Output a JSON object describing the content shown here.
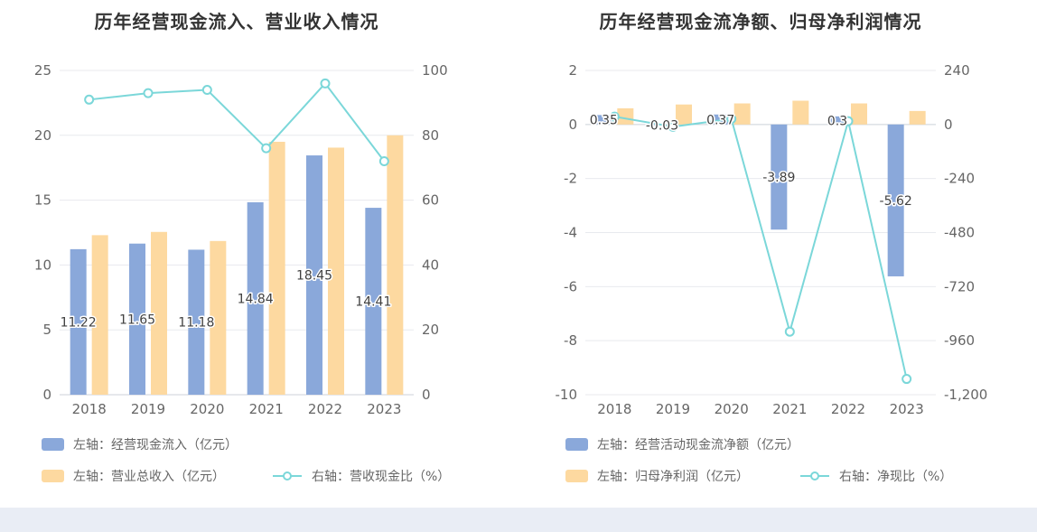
{
  "colors": {
    "bar_blue": "#8aa8da",
    "bar_yellow": "#fdd9a0",
    "line_teal": "#7bd7d9",
    "grid_line": "#e8eaee",
    "axis_line": "#ccd2d9",
    "axis_text": "#666666",
    "title_text": "#333333",
    "bar_label_text": "#404040",
    "legend_text": "#666666",
    "footer_strip": "#e9edf5",
    "panel_background": "#ffffff"
  },
  "chart_data": [
    {
      "type": "bar",
      "subtype": "grouped-bars-with-line-overlay",
      "title": "历年经营现金流入、营业收入情况",
      "categories": [
        "2018",
        "2019",
        "2020",
        "2021",
        "2022",
        "2023"
      ],
      "left_axis": {
        "min": 0,
        "max": 25,
        "ticks": [
          "25",
          "20",
          "15",
          "10",
          "5",
          "0"
        ],
        "axis_line_value": 0
      },
      "right_axis": {
        "min": 0,
        "max": 100,
        "ticks": [
          "100",
          "80",
          "60",
          "40",
          "20",
          "0"
        ]
      },
      "grid": true,
      "legend_position": "bottom-left",
      "series": [
        {
          "name": "左轴：经营现金流入（亿元）",
          "kind": "bar",
          "axis": "left",
          "color_key": "bar_blue",
          "values": [
            11.22,
            11.65,
            11.18,
            14.84,
            18.45,
            14.41
          ],
          "labels": [
            "11.22",
            "11.65",
            "11.18",
            "14.84",
            "18.45",
            "14.41"
          ]
        },
        {
          "name": "左轴：营业总收入（亿元）",
          "kind": "bar",
          "axis": "left",
          "color_key": "bar_yellow",
          "values": [
            12.3,
            12.55,
            11.85,
            19.5,
            19.05,
            20.0
          ]
        },
        {
          "name": "右轴：营收现金比（%）",
          "kind": "line",
          "axis": "right",
          "color_key": "line_teal",
          "values": [
            91,
            93,
            94,
            76,
            96,
            72
          ]
        }
      ]
    },
    {
      "type": "bar",
      "subtype": "grouped-bars-with-line-overlay",
      "title": "历年经营现金流净额、归母净利润情况",
      "categories": [
        "2018",
        "2019",
        "2020",
        "2021",
        "2022",
        "2023"
      ],
      "left_axis": {
        "min": -10,
        "max": 2,
        "ticks": [
          "2",
          "0",
          "-2",
          "-4",
          "-6",
          "-8",
          "-10"
        ],
        "axis_line_value": 0
      },
      "right_axis": {
        "min": -1200,
        "max": 240,
        "ticks": [
          "240",
          "0",
          "-240",
          "-480",
          "-720",
          "-960",
          "-1,200"
        ]
      },
      "grid": true,
      "legend_position": "bottom-left",
      "series": [
        {
          "name": "左轴：经营活动现金流净额（亿元）",
          "kind": "bar",
          "axis": "left",
          "color_key": "bar_blue",
          "values": [
            0.35,
            -0.03,
            0.37,
            -3.89,
            0.3,
            -5.62
          ],
          "labels": [
            "0.35",
            "-0.03",
            "0.37",
            "-3.89",
            "0.3",
            "-5.62"
          ]
        },
        {
          "name": "左轴：归母净利润（亿元）",
          "kind": "bar",
          "axis": "left",
          "color_key": "bar_yellow",
          "values": [
            0.6,
            0.74,
            0.78,
            0.88,
            0.78,
            0.5
          ]
        },
        {
          "name": "右轴：净现比（%）",
          "kind": "line",
          "axis": "right",
          "color_key": "line_teal",
          "values": [
            35,
            -10,
            25,
            -920,
            15,
            -1130
          ]
        }
      ]
    }
  ]
}
